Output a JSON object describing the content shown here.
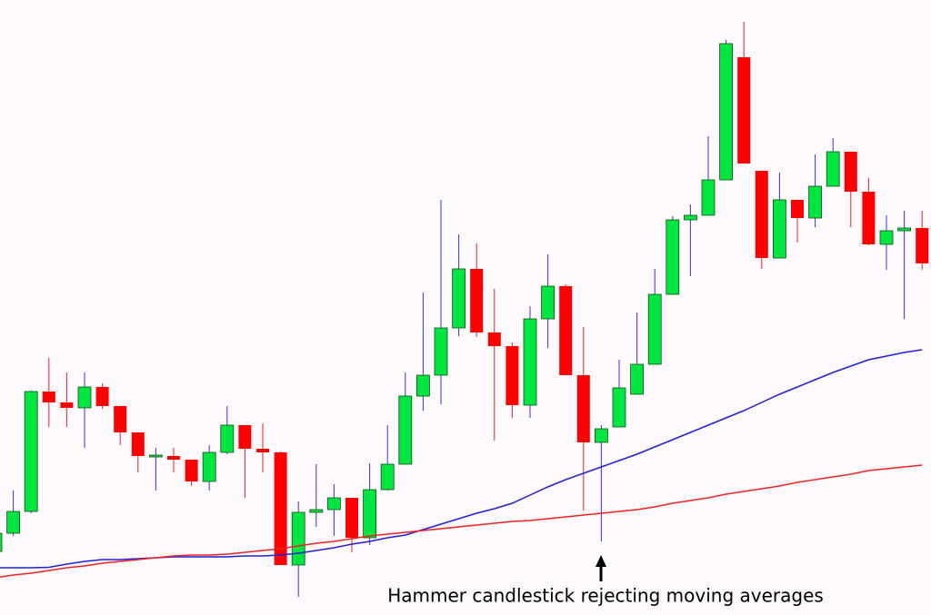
{
  "chart_data": {
    "type": "candlestick",
    "annotation": "Hammer candlestick rejecting moving averages",
    "categories": [
      null,
      null,
      null,
      null,
      null,
      null,
      null,
      null,
      null,
      null,
      null,
      null,
      null,
      null,
      null,
      null,
      null,
      null,
      null,
      null,
      null,
      null,
      null,
      null,
      null,
      null,
      null,
      null,
      null,
      null,
      null,
      null,
      null,
      null,
      null,
      null,
      null,
      null,
      null,
      null,
      null,
      null,
      null,
      null,
      null,
      null,
      null,
      null,
      null,
      null,
      null,
      null,
      null
    ],
    "ylim": [
      0,
      677
    ],
    "up_color": "#00e640",
    "down_color": "#ff0000",
    "up_wick_color": "#3333ee",
    "down_wick_color": "#ee2222",
    "open": [
      70,
      90,
      114,
      246,
      234,
      228,
      251,
      230,
      201,
      174,
      175,
      171,
      147,
      179,
      209,
      183,
      179,
      55,
      113,
      116,
      129,
      85,
      138,
      166,
      241,
      264,
      316,
      381,
      311,
      296,
      231,
      326,
      362,
      264,
      190,
      207,
      243,
      276,
      353,
      435,
      440,
      479,
      614,
      489,
      393,
      457,
      437,
      472,
      510,
      466,
      408,
      423,
      426
    ],
    "high": [
      97,
      137,
      247,
      283,
      267,
      267,
      255,
      230,
      201,
      184,
      184,
      171,
      187,
      230,
      209,
      211,
      180,
      125,
      166,
      144,
      129,
      167,
      209,
      267,
      355,
      457,
      419,
      409,
      359,
      300,
      340,
      397,
      364,
      317,
      209,
      281,
      333,
      381,
      439,
      452,
      527,
      633,
      653,
      489,
      487,
      457,
      507,
      525,
      510,
      481,
      440,
      445,
      445
    ],
    "low": [
      67,
      87,
      112,
      207,
      207,
      184,
      227,
      187,
      157,
      137,
      157,
      142,
      137,
      177,
      129,
      157,
      55,
      20,
      97,
      87,
      69,
      77,
      137,
      166,
      225,
      232,
      307,
      306,
      192,
      217,
      217,
      294,
      264,
      115,
      81,
      207,
      243,
      276,
      353,
      373,
      440,
      479,
      497,
      381,
      393,
      410,
      427,
      472,
      427,
      407,
      380,
      326,
      380
    ],
    "close": [
      90,
      114,
      246,
      234,
      228,
      251,
      230,
      201,
      175,
      176,
      171,
      147,
      179,
      209,
      183,
      179,
      55,
      113,
      116,
      129,
      85,
      138,
      166,
      241,
      264,
      316,
      381,
      311,
      296,
      231,
      326,
      362,
      264,
      190,
      205,
      250,
      276,
      353,
      435,
      440,
      479,
      629,
      497,
      393,
      457,
      437,
      472,
      510,
      466,
      408,
      423,
      426,
      387
    ],
    "lines": [
      {
        "color": "#1f1fdd",
        "values": [
          52,
          52,
          52,
          52.5,
          56,
          59,
          61,
          61,
          62,
          63,
          64,
          64,
          64,
          64,
          65,
          65,
          66,
          68,
          71,
          74,
          78,
          81,
          85,
          88,
          94,
          100,
          106,
          112,
          117,
          123,
          132,
          141,
          149,
          156,
          163,
          170,
          177,
          185,
          193,
          201,
          209,
          217,
          225,
          234,
          243,
          251,
          259,
          267,
          274,
          281,
          285,
          289,
          292
        ]
      },
      {
        "color": "#ee2222",
        "values": [
          41,
          44,
          46,
          49,
          52,
          54,
          57,
          59,
          61,
          63,
          65,
          66,
          66,
          67,
          69,
          71,
          73,
          76,
          79,
          81,
          84,
          87,
          89,
          91,
          93,
          95,
          97,
          99,
          101,
          103,
          104,
          106,
          108,
          110,
          112,
          114,
          116,
          119,
          123,
          126,
          129,
          133,
          136,
          139,
          142,
          146,
          149,
          152,
          155,
          159,
          161,
          163,
          165
        ]
      }
    ]
  }
}
